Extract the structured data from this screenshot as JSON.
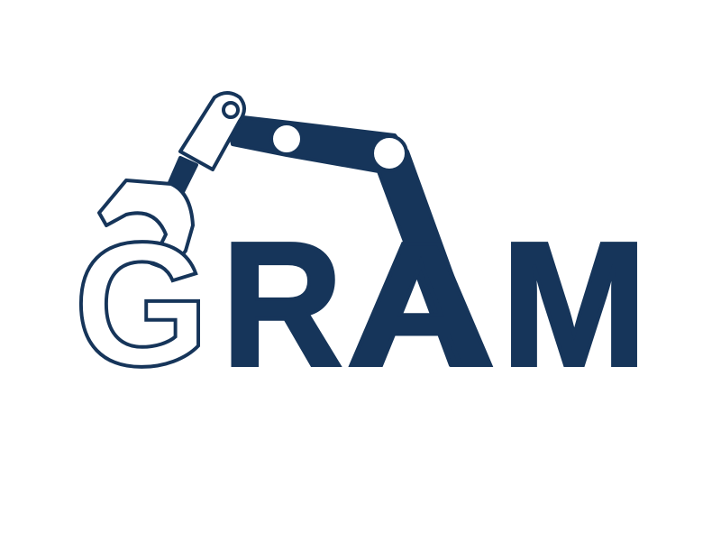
{
  "logo": {
    "letters": [
      "G",
      "R",
      "A",
      "M"
    ]
  }
}
